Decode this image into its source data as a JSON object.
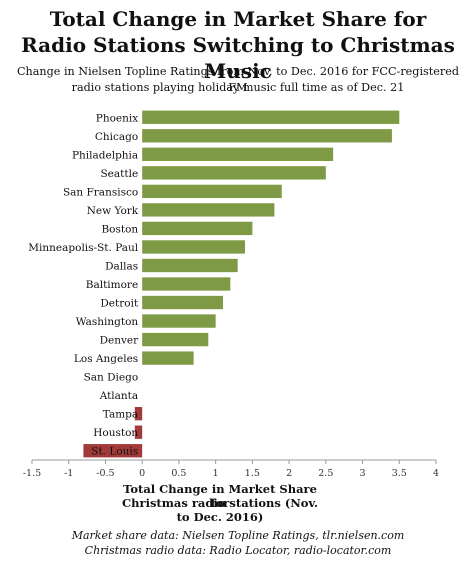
{
  "title_line1": "Total Change in Market Share for",
  "title_line2": "Radio Stations Switching to Christmas Music",
  "subtitle_line1": "Change in Nielsen Topline Ratings from Nov. to Dec. 2016 for FCC-registered FM",
  "subtitle_line2": "radio stations playing holiday music full time as of Dec. 21",
  "source_line1": "Market share data: Nielsen Topline Ratings, tlr.nielsen.com",
  "source_line2": "Christmas radio data: Radio Locator, radio-locator.com",
  "chart_data": {
    "type": "bar",
    "orientation": "horizontal",
    "xlabel_line1": "Total Change in Market Share for",
    "xlabel_line2": "Christmas radio stations (Nov. to Dec. 2016)",
    "xlim": [
      -1.5,
      4
    ],
    "xticks": [
      "-1.5",
      "-1",
      "-0.5",
      "0",
      "0.5",
      "1",
      "1.5",
      "2",
      "2.5",
      "3",
      "3.5",
      "4"
    ],
    "xtick_values": [
      -1.5,
      -1,
      -0.5,
      0,
      0.5,
      1,
      1.5,
      2,
      2.5,
      3,
      3.5,
      4
    ],
    "grid": false,
    "colors": {
      "positive": "#7f9a44",
      "negative": "#a33a3a"
    },
    "categories": [
      "Phoenix",
      "Chicago",
      "Philadelphia",
      "Seattle",
      "San Fransisco",
      "New York",
      "Boston",
      "Minneapolis-St. Paul",
      "Dallas",
      "Baltimore",
      "Detroit",
      "Washington",
      "Denver",
      "Los Angeles",
      "San Diego",
      "Atlanta",
      "Tampa",
      "Houston",
      "St. Louis"
    ],
    "values": [
      3.5,
      3.4,
      2.6,
      2.5,
      1.9,
      1.8,
      1.5,
      1.4,
      1.3,
      1.2,
      1.1,
      1.0,
      0.9,
      0.7,
      0,
      0,
      -0.1,
      -0.1,
      -0.8
    ]
  }
}
